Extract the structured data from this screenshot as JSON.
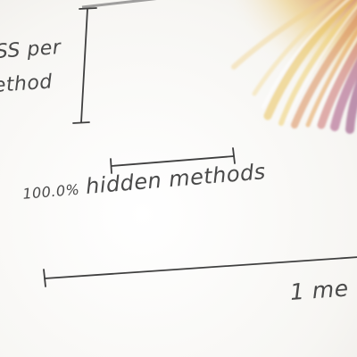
{
  "vertical_scale": {
    "label_line1": "SS per",
    "label_line2": "ethod"
  },
  "hidden_methods": {
    "percent": "100.0%",
    "text": "hidden methods"
  },
  "bottom_scale": {
    "label": "1 me"
  },
  "colors": {
    "ink": "#4a4a4a",
    "scale_line": "#3f3f3f",
    "streak_yellow": "#e9c15a",
    "streak_orange": "#d98a56",
    "streak_magenta": "#a64e7d",
    "background": "#fbfaf8"
  }
}
